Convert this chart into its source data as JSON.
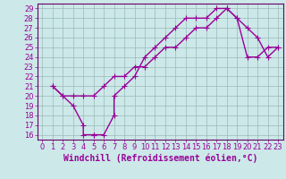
{
  "xlabel": "Windchill (Refroidissement éolien,°C)",
  "bg_color": "#cce8e8",
  "line_color": "#990099",
  "spine_color": "#660066",
  "xlim": [
    -0.5,
    23.5
  ],
  "ylim": [
    15.5,
    29.5
  ],
  "xticks": [
    0,
    1,
    2,
    3,
    4,
    5,
    6,
    7,
    8,
    9,
    10,
    11,
    12,
    13,
    14,
    15,
    16,
    17,
    18,
    19,
    20,
    21,
    22,
    23
  ],
  "yticks": [
    16,
    17,
    18,
    19,
    20,
    21,
    22,
    23,
    24,
    25,
    26,
    27,
    28,
    29
  ],
  "line1_x": [
    1,
    2,
    3,
    4,
    4,
    5,
    5,
    6,
    7,
    7,
    8,
    9,
    10,
    11,
    12,
    13,
    14,
    15,
    16,
    17,
    18,
    19,
    20,
    21,
    22,
    23
  ],
  "line1_y": [
    21,
    20,
    19,
    17,
    16,
    16,
    16,
    16,
    18,
    20,
    21,
    22,
    24,
    25,
    26,
    27,
    28,
    28,
    28,
    29,
    29,
    28,
    24,
    24,
    25,
    25
  ],
  "line2_x": [
    1,
    2,
    3,
    4,
    5,
    6,
    7,
    8,
    9,
    10,
    11,
    12,
    13,
    14,
    15,
    16,
    17,
    18,
    19,
    20,
    21,
    22,
    23
  ],
  "line2_y": [
    21,
    20,
    20,
    20,
    20,
    21,
    22,
    22,
    23,
    23,
    24,
    25,
    25,
    26,
    27,
    27,
    28,
    29,
    28,
    27,
    26,
    24,
    25
  ],
  "marker": "+",
  "markersize": 4,
  "linewidth": 1.0,
  "xlabel_fontsize": 7,
  "tick_fontsize": 6,
  "grid_color": "#9ababa",
  "grid_linewidth": 0.5
}
